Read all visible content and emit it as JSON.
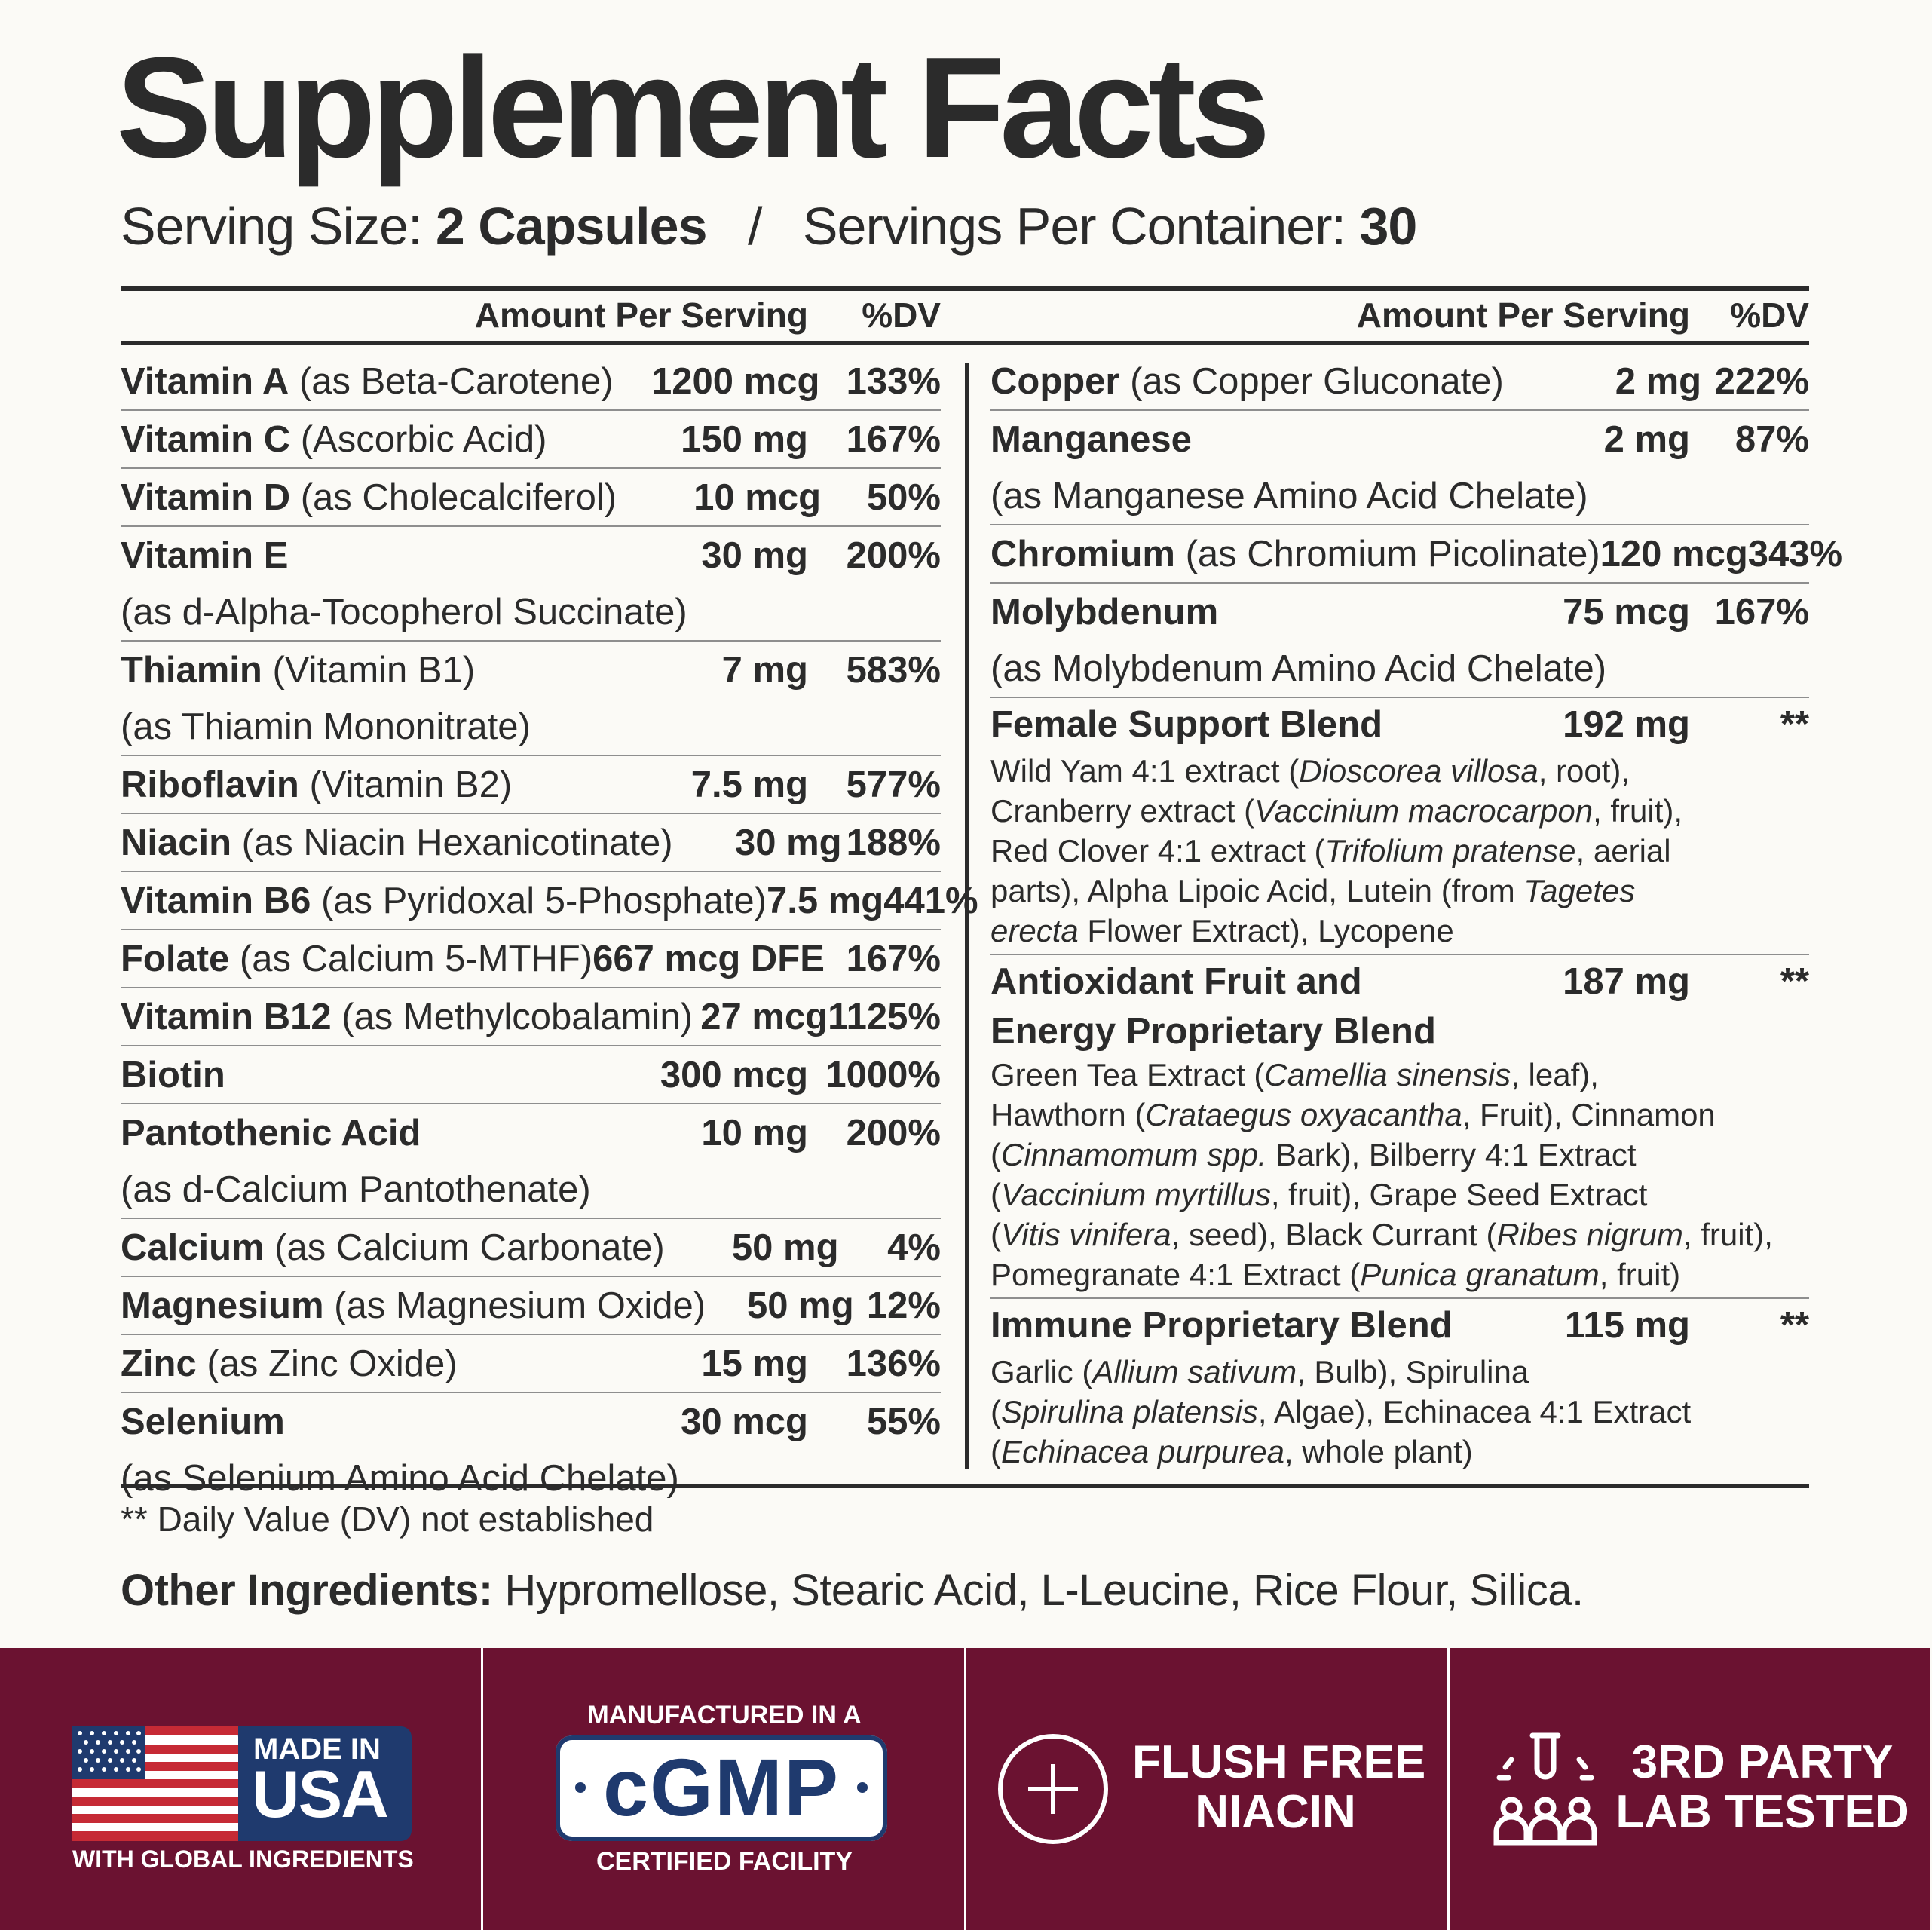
{
  "title": "Supplement Facts",
  "serving": {
    "size_label": "Serving Size:",
    "size_value": "2 Capsules",
    "separator": "/",
    "per_container_label": "Servings Per Container:",
    "per_container_value": "30"
  },
  "headers": {
    "amount": "Amount Per Serving",
    "dv": "%DV"
  },
  "left_rows": [
    {
      "name": "Vitamin A",
      "detail": " (as Beta-Carotene)",
      "amount": "1200 mcg",
      "dv": "133%"
    },
    {
      "name": "Vitamin C",
      "detail": " (Ascorbic Acid)",
      "amount": "150 mg",
      "dv": "167%"
    },
    {
      "name": "Vitamin D",
      "detail": " (as Cholecalciferol)",
      "amount": "10 mcg",
      "dv": "50%"
    },
    {
      "name": "Vitamin E",
      "detail": "",
      "amount": "30 mg",
      "dv": "200%",
      "sub": "(as d-Alpha-Tocopherol Succinate)"
    },
    {
      "name": "Thiamin",
      "detail": " (Vitamin B1)",
      "amount": "7 mg",
      "dv": "583%",
      "sub": "(as Thiamin Mononitrate)"
    },
    {
      "name": "Riboflavin",
      "detail": " (Vitamin B2)",
      "amount": "7.5 mg",
      "dv": "577%"
    },
    {
      "name": "Niacin",
      "detail": " (as Niacin Hexanicotinate)",
      "amount": "30 mg",
      "dv": "188%"
    },
    {
      "name": "Vitamin B6",
      "detail": " (as Pyridoxal 5-Phosphate)",
      "amount": "7.5 mg",
      "dv": "441%"
    },
    {
      "name": "Folate",
      "detail": " (as Calcium 5-MTHF)",
      "amount": "667 mcg DFE",
      "dv": "167%"
    },
    {
      "name": "Vitamin B12",
      "detail": " (as Methylcobalamin)",
      "amount": "27 mcg",
      "dv": "1125%"
    },
    {
      "name": "Biotin",
      "detail": "",
      "amount": "300 mcg",
      "dv": "1000%"
    },
    {
      "name": "Pantothenic Acid",
      "detail": "",
      "amount": "10 mg",
      "dv": "200%",
      "sub": "(as d-Calcium Pantothenate)"
    },
    {
      "name": "Calcium",
      "detail": " (as Calcium Carbonate)",
      "amount": "50 mg",
      "dv": "4%"
    },
    {
      "name": "Magnesium",
      "detail": " (as Magnesium Oxide)",
      "amount": "50 mg",
      "dv": "12%"
    },
    {
      "name": "Zinc",
      "detail": " (as Zinc Oxide)",
      "amount": "15 mg",
      "dv": "136%"
    },
    {
      "name": "Selenium",
      "detail": "",
      "amount": "30 mcg",
      "dv": "55%",
      "sub": "(as Selenium Amino Acid Chelate)"
    }
  ],
  "right_rows": [
    {
      "name": "Copper",
      "detail": " (as Copper Gluconate)",
      "amount": "2 mg",
      "dv": "222%"
    },
    {
      "name": "Manganese",
      "detail": "",
      "amount": "2 mg",
      "dv": "87%",
      "sub": "(as Manganese Amino Acid Chelate)"
    },
    {
      "name": "Chromium",
      "detail": " (as Chromium Picolinate)",
      "amount": "120 mcg",
      "dv": "343%"
    },
    {
      "name": "Molybdenum",
      "detail": "",
      "amount": "75 mcg",
      "dv": "167%",
      "sub": "(as Molybdenum Amino Acid Chelate)"
    }
  ],
  "blends": [
    {
      "name": "Female Support Blend",
      "amount": "192 mg",
      "dv": "**",
      "lines": [
        [
          "Wild Yam 4:1 extract (",
          {
            "i": "Dioscorea villosa"
          },
          ", root),"
        ],
        [
          "Cranberry extract (",
          {
            "i": "Vaccinium macrocarpon"
          },
          ", fruit),"
        ],
        [
          "Red Clover 4:1 extract (",
          {
            "i": "Trifolium pratense"
          },
          ", aerial"
        ],
        [
          "parts), Alpha Lipoic Acid, Lutein (from ",
          {
            "i": "Tagetes"
          }
        ],
        [
          {
            "i": "erecta"
          },
          " Flower Extract), Lycopene"
        ]
      ]
    },
    {
      "name": "Antioxidant Fruit and",
      "name2": "Energy Proprietary Blend",
      "amount": "187 mg",
      "dv": "**",
      "lines": [
        [
          "Green Tea Extract (",
          {
            "i": "Camellia sinensis"
          },
          ", leaf),"
        ],
        [
          "Hawthorn (",
          {
            "i": "Crataegus oxyacantha"
          },
          ", Fruit), Cinnamon"
        ],
        [
          "(",
          {
            "i": "Cinnamomum spp."
          },
          " Bark), Bilberry 4:1 Extract"
        ],
        [
          "(",
          {
            "i": "Vaccinium myrtillus"
          },
          ", fruit), Grape Seed Extract"
        ],
        [
          "(",
          {
            "i": "Vitis vinifera"
          },
          ", seed), Black Currant (",
          {
            "i": "Ribes nigrum"
          },
          ", fruit),"
        ],
        [
          "Pomegranate 4:1 Extract (",
          {
            "i": "Punica granatum"
          },
          ", fruit)"
        ]
      ]
    },
    {
      "name": "Immune Proprietary Blend",
      "amount": "115 mg",
      "dv": "**",
      "lines": [
        [
          "Garlic (",
          {
            "i": "Allium sativum"
          },
          ", Bulb), Spirulina"
        ],
        [
          "(",
          {
            "i": "Spirulina platensis"
          },
          ", Algae), Echinacea 4:1 Extract"
        ],
        [
          "(",
          {
            "i": "Echinacea purpurea"
          },
          ", whole plant)"
        ]
      ]
    }
  ],
  "footnote": "** Daily Value (DV) not established",
  "other": {
    "label": "Other Ingredients:",
    "text": " Hypromellose, Stearic Acid, L-Leucine, Rice Flour, Silica."
  },
  "badges": {
    "usa": {
      "line1": "MADE IN",
      "line2": "USA",
      "sub": "WITH GLOBAL INGREDIENTS"
    },
    "cgmp": {
      "top": "MANUFACTURED IN A",
      "mark": "cGMP",
      "bottom": "CERTIFIED FACILITY"
    },
    "flush": {
      "line1": "FLUSH FREE",
      "line2": "NIACIN"
    },
    "lab": {
      "line1": "3RD PARTY",
      "line2": "LAB TESTED"
    }
  },
  "colors": {
    "text": "#2b2b2b",
    "background": "#fbfaf6",
    "banner": "#6b1231",
    "flag_blue": "#1f3a6e",
    "flag_red": "#c62a35"
  }
}
